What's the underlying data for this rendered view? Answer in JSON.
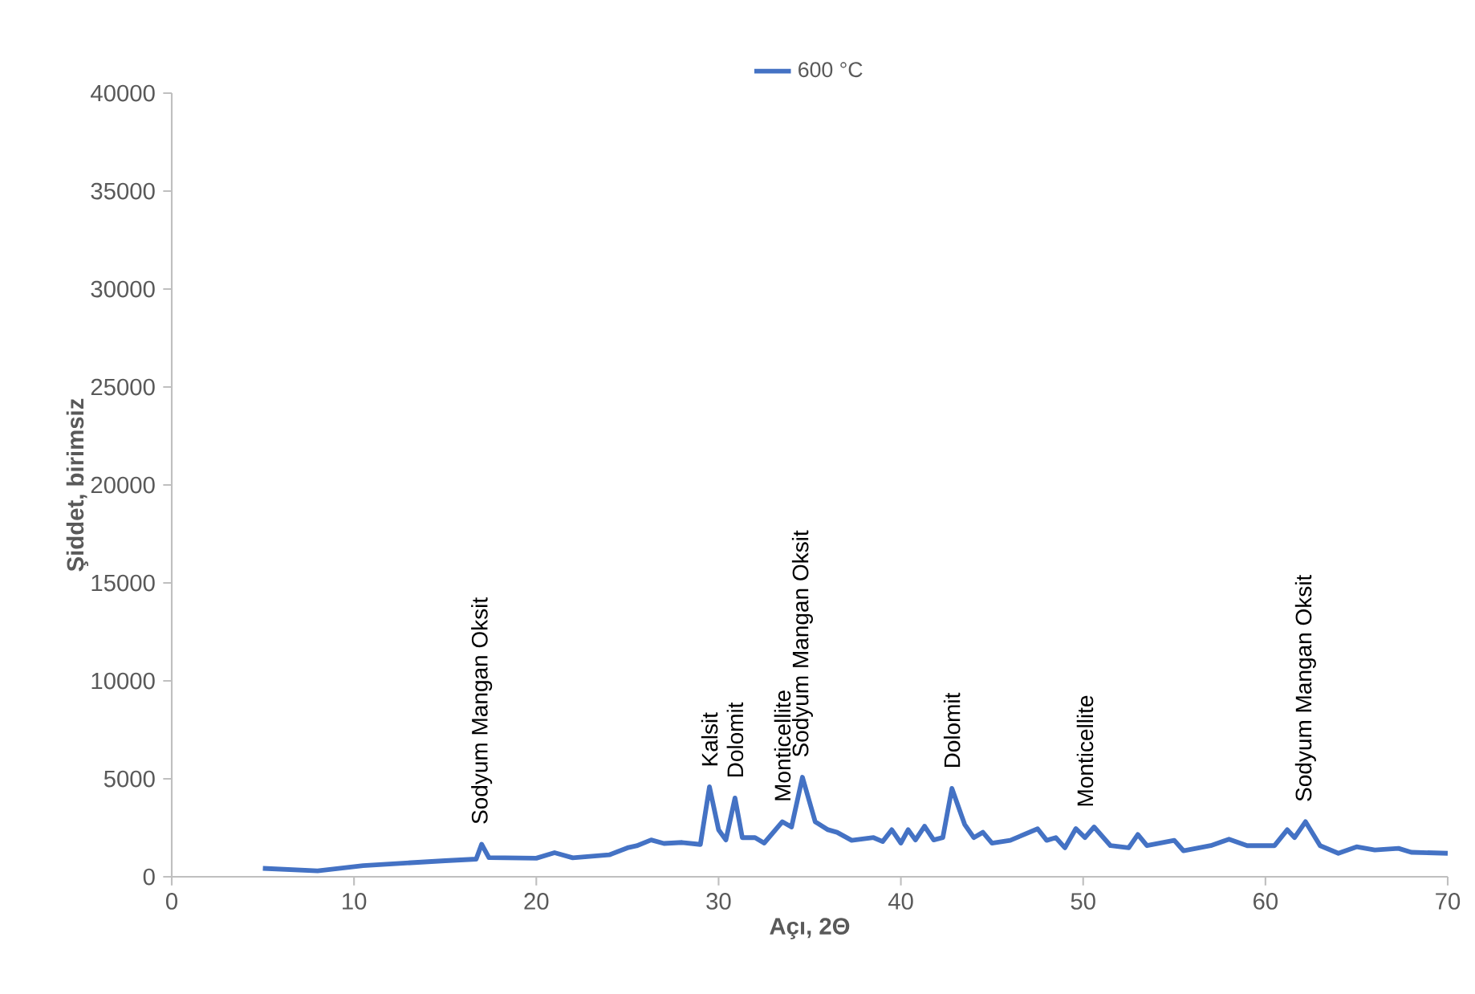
{
  "chart_data": {
    "type": "line",
    "xlabel": "Açı, 2Θ",
    "ylabel": "Şiddet, birimsiz",
    "series": [
      {
        "name": "600 °C",
        "color": "#4472c4",
        "x": [
          5,
          8,
          10.5,
          15,
          16.7,
          17,
          17.4,
          20,
          21,
          22,
          24,
          25,
          25.5,
          26.3,
          27,
          28,
          29,
          29.5,
          30,
          30.4,
          30.9,
          31.3,
          32,
          32.5,
          33.5,
          34,
          34.6,
          35.3,
          36,
          36.5,
          37.3,
          38.5,
          39,
          39.5,
          40,
          40.4,
          40.8,
          41.3,
          41.8,
          42.3,
          42.8,
          43.5,
          44,
          44.5,
          45,
          46,
          47.5,
          48,
          48.5,
          49,
          49.6,
          50.1,
          50.6,
          51.5,
          52.5,
          53,
          53.5,
          55,
          55.5,
          57,
          58,
          59,
          60.5,
          61.2,
          61.6,
          62.2,
          63,
          64,
          65,
          66,
          67.3,
          68,
          70
        ],
        "values": [
          430,
          300,
          570,
          820,
          900,
          1660,
          980,
          950,
          1230,
          970,
          1120,
          1480,
          1580,
          1880,
          1700,
          1750,
          1650,
          4590,
          2400,
          1880,
          4020,
          2000,
          2000,
          1720,
          2810,
          2540,
          5080,
          2810,
          2400,
          2270,
          1860,
          2000,
          1800,
          2400,
          1720,
          2400,
          1880,
          2580,
          1880,
          2000,
          4510,
          2670,
          2000,
          2270,
          1720,
          1860,
          2450,
          1860,
          2000,
          1480,
          2460,
          2000,
          2540,
          1590,
          1480,
          2160,
          1590,
          1860,
          1330,
          1590,
          1920,
          1590,
          1590,
          2400,
          2000,
          2810,
          1590,
          1200,
          1530,
          1370,
          1450,
          1250,
          1200
        ]
      }
    ],
    "annotations": [
      {
        "text": "Sodyum Mangan Oksit",
        "x": 17,
        "y": 1660
      },
      {
        "text": "Kalsit",
        "x": 29.5,
        "y": 4590
      },
      {
        "text": "Dolomit",
        "x": 30.9,
        "y": 4020
      },
      {
        "text": "Monticellite",
        "x": 33.5,
        "y": 2810
      },
      {
        "text": "Sodyum Mangan Oksit",
        "x": 34.6,
        "y": 5080
      },
      {
        "text": "Dolomit",
        "x": 42.8,
        "y": 4510
      },
      {
        "text": "Monticellite",
        "x": 50.1,
        "y": 2540
      },
      {
        "text": "Sodyum Mangan Oksit",
        "x": 62.2,
        "y": 2810
      }
    ],
    "xlim": [
      0,
      70
    ],
    "ylim": [
      0,
      40000
    ],
    "xticks": [
      0,
      10,
      20,
      30,
      40,
      50,
      60,
      70
    ],
    "yticks": [
      0,
      5000,
      10000,
      15000,
      20000,
      25000,
      30000,
      35000,
      40000
    ],
    "grid": false,
    "legend": "top",
    "marker": "none",
    "line_style": "solid"
  }
}
